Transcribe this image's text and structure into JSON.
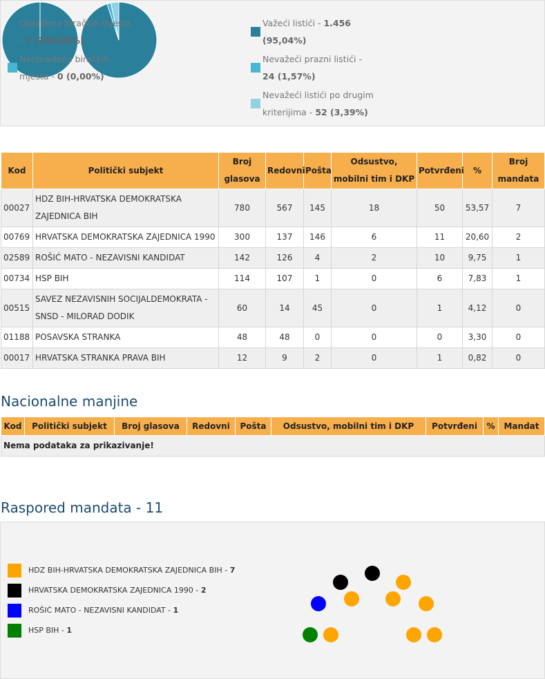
{
  "summary": [
    {
      "items": [
        {
          "label": "Obrađeno biračkih mjesta -",
          "value_label": "7 (100,00%)",
          "percent": 100,
          "color": "#2a7f9b"
        },
        {
          "label": "Neobrađeno biračkih mjesta -",
          "value_label": "0 (0,00%)",
          "percent": 0,
          "color": "#46b6d4"
        }
      ]
    },
    {
      "items": [
        {
          "label": "Važeći listići -",
          "value_label": "1.456 (95,04%)",
          "percent": 95.04,
          "color": "#2a7f9b"
        },
        {
          "label": "Nevažeći prazni listići -",
          "value_label": "24 (1,57%)",
          "percent": 1.57,
          "color": "#46b6d4"
        },
        {
          "label": "Nevažeći listići po drugim kriterijima -",
          "value_label": "52 (3,39%)",
          "percent": 3.39,
          "color": "#8ed2e4"
        }
      ]
    }
  ],
  "results_table": {
    "headers": [
      "Kod",
      "Politički subjekt",
      "Broj glasova",
      "Redovni",
      "Pošta",
      "Odsustvo, mobilni tim i DKP",
      "Potvrđeni",
      "%",
      "Broj mandata"
    ],
    "rows": [
      [
        "00027",
        "HDZ BIH-HRVATSKA DEMOKRATSKA ZAJEDNICA BIH",
        "780",
        "567",
        "145",
        "18",
        "50",
        "53,57",
        "7"
      ],
      [
        "00769",
        "HRVATSKA DEMOKRATSKA ZAJEDNICA 1990",
        "300",
        "137",
        "146",
        "6",
        "11",
        "20,60",
        "2"
      ],
      [
        "02589",
        "ROŠIĆ MATO - NEZAVISNI KANDIDAT",
        "142",
        "126",
        "4",
        "2",
        "10",
        "9,75",
        "1"
      ],
      [
        "00734",
        "HSP BIH",
        "114",
        "107",
        "1",
        "0",
        "6",
        "7,83",
        "1"
      ],
      [
        "00515",
        "SAVEZ NEZAVISNIH SOCIJALDEMOKRATA - SNSD - MILORAD DODIK",
        "60",
        "14",
        "45",
        "0",
        "1",
        "4,12",
        "0"
      ],
      [
        "01188",
        "POSAVSKA STRANKA",
        "48",
        "48",
        "0",
        "0",
        "0",
        "3,30",
        "0"
      ],
      [
        "00017",
        "HRVATSKA STRANKA PRAVA BIH",
        "12",
        "9",
        "2",
        "0",
        "1",
        "0,82",
        "0"
      ]
    ]
  },
  "national_minorities": {
    "title": "Nacionalne manjine",
    "headers": [
      "Kod",
      "Politički subjekt",
      "Broj glasova",
      "Redovni",
      "Pošta",
      "Odsustvo, mobilni tim i DKP",
      "Potvrđeni",
      "%",
      "Mandat"
    ],
    "empty_message": "Nema podataka za prikazivanje!"
  },
  "mandates": {
    "title": "Raspored mandata - 11",
    "parties": [
      {
        "name": "HDZ BIH-HRVATSKA DEMOKRATSKA ZAJEDNICA BIH -",
        "seats": 7,
        "color": "#ffa500"
      },
      {
        "name": "HRVATSKA DEMOKRATSKA ZAJEDNICA 1990 -",
        "seats": 2,
        "color": "#000000"
      },
      {
        "name": "ROŠIĆ MATO - NEZAVISNI KANDIDAT -",
        "seats": 1,
        "color": "#0000ff"
      },
      {
        "name": "HSP BIH -",
        "seats": 1,
        "color": "#008000"
      }
    ]
  }
}
